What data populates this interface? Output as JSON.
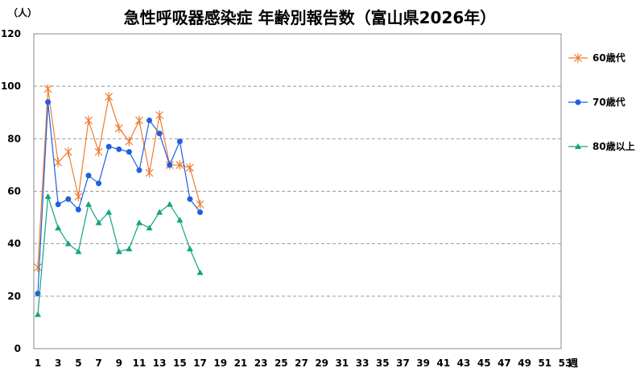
{
  "chart_data": {
    "type": "line",
    "title": "急性呼吸器感染症 年齢別報告数（富山県2026年）",
    "ylabel": "（人）",
    "xlabel": "週",
    "ylim": [
      0,
      120
    ],
    "yticks": [
      0,
      20,
      40,
      60,
      80,
      100,
      120
    ],
    "xlim": [
      1,
      53
    ],
    "xticks": [
      1,
      3,
      5,
      7,
      9,
      11,
      13,
      15,
      17,
      19,
      21,
      23,
      25,
      27,
      29,
      31,
      33,
      35,
      37,
      39,
      41,
      43,
      45,
      47,
      49,
      51,
      53
    ],
    "grid": "horizontal-dashed",
    "legend_position": "right",
    "x": [
      1,
      2,
      3,
      4,
      5,
      6,
      7,
      8,
      9,
      10,
      11,
      12,
      13,
      14,
      15,
      16,
      17
    ],
    "series": [
      {
        "name": "60歳代",
        "marker": "asterisk",
        "color": "#ED7D31",
        "values": [
          31,
          99,
          71,
          75,
          58,
          87,
          75,
          96,
          84,
          79,
          87,
          67,
          89,
          70,
          70,
          69,
          55
        ]
      },
      {
        "name": "70歳代",
        "marker": "circle",
        "color": "#1F5FE0",
        "values": [
          21,
          94,
          55,
          57,
          53,
          66,
          63,
          77,
          76,
          75,
          68,
          87,
          82,
          70,
          79,
          57,
          52
        ]
      },
      {
        "name": "80歳以上",
        "marker": "triangle",
        "color": "#12A37F",
        "values": [
          13,
          58,
          46,
          40,
          37,
          55,
          48,
          52,
          37,
          38,
          48,
          46,
          52,
          55,
          49,
          38,
          29
        ]
      }
    ]
  }
}
